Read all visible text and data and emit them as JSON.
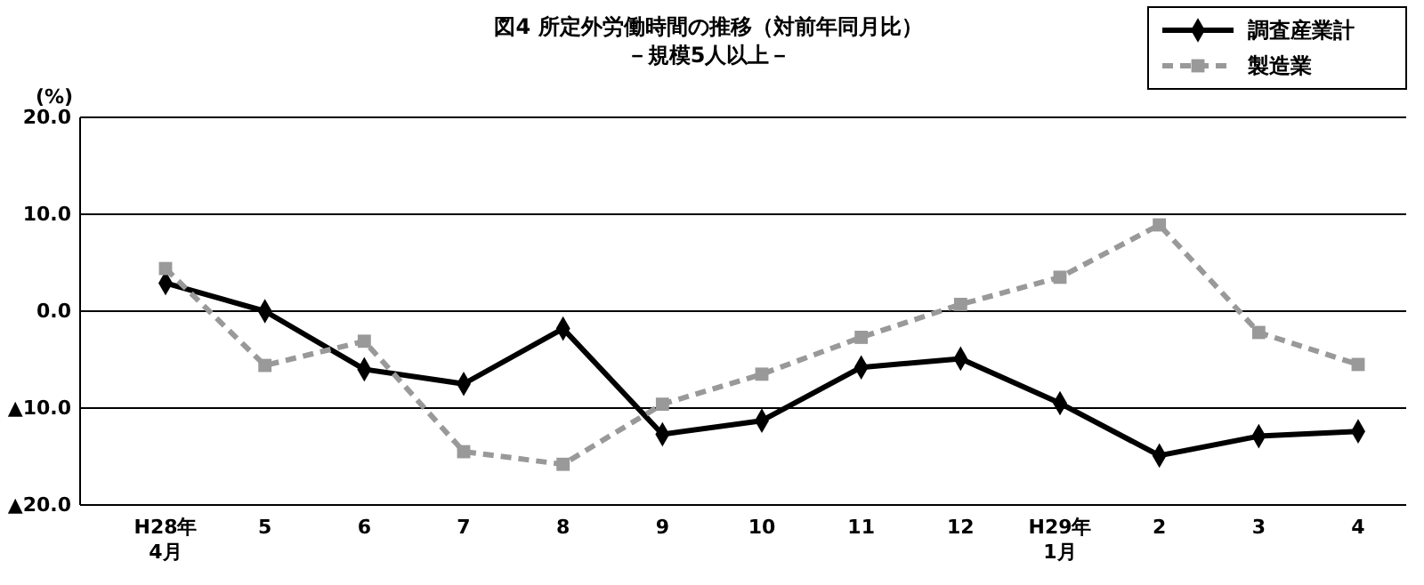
{
  "chart_data": {
    "type": "line",
    "title": "図4  所定外労働時間の推移（対前年同月比）",
    "subtitle": "－規模5人以上－",
    "ylabel": "(%)",
    "categories": [
      "H28年\n4月",
      "5",
      "6",
      "7",
      "8",
      "9",
      "10",
      "11",
      "12",
      "H29年\n1月",
      "2",
      "3",
      "4"
    ],
    "ylim": [
      -20,
      20
    ],
    "yticks": [
      {
        "value": 20,
        "label": "20.0"
      },
      {
        "value": 10,
        "label": "10.0"
      },
      {
        "value": 0,
        "label": "0.0"
      },
      {
        "value": -10,
        "label": "▲10.0"
      },
      {
        "value": -20,
        "label": "▲20.0"
      }
    ],
    "grid": "y",
    "legend": "top right",
    "series": [
      {
        "name": "調査産業計",
        "color": "#000000",
        "marker": "diamond",
        "line_style": "solid",
        "values": [
          2.9,
          0.0,
          -6.0,
          -7.5,
          -1.8,
          -12.7,
          -11.3,
          -5.8,
          -4.9,
          -9.5,
          -14.9,
          -12.9,
          -12.4
        ]
      },
      {
        "name": "製造業",
        "color": "#999999",
        "marker": "square",
        "line_style": "dashed",
        "values": [
          4.4,
          -5.6,
          -3.1,
          -14.5,
          -15.8,
          -9.6,
          -6.5,
          -2.7,
          0.7,
          3.5,
          8.9,
          -2.2,
          -5.5
        ]
      }
    ]
  }
}
